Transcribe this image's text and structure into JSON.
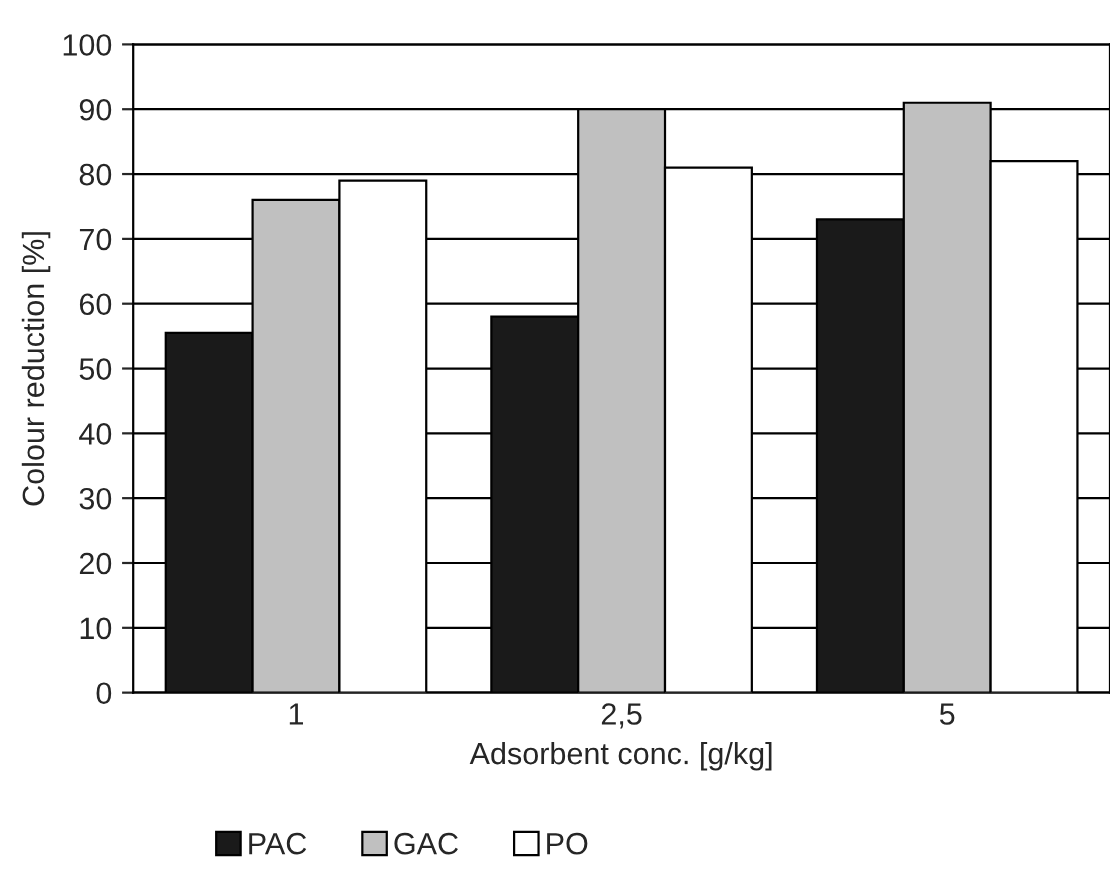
{
  "chart_data": {
    "type": "bar",
    "xlabel": "Adsorbent conc. [g/kg]",
    "ylabel": "Colour reduction [%]",
    "categories": [
      "1",
      "2,5",
      "5"
    ],
    "series": [
      {
        "name": "PAC",
        "color": "#1a1a1a",
        "values": [
          55.5,
          58,
          73
        ]
      },
      {
        "name": "GAC",
        "color": "#c0c0c0",
        "values": [
          76,
          90,
          91
        ]
      },
      {
        "name": "PO",
        "color": "#ffffff",
        "values": [
          79,
          81,
          82
        ]
      }
    ],
    "ylim": [
      0,
      100
    ],
    "yticks": [
      0,
      10,
      20,
      30,
      40,
      50,
      60,
      70,
      80,
      90,
      100
    ],
    "grid": "y",
    "legend": "bottom"
  }
}
